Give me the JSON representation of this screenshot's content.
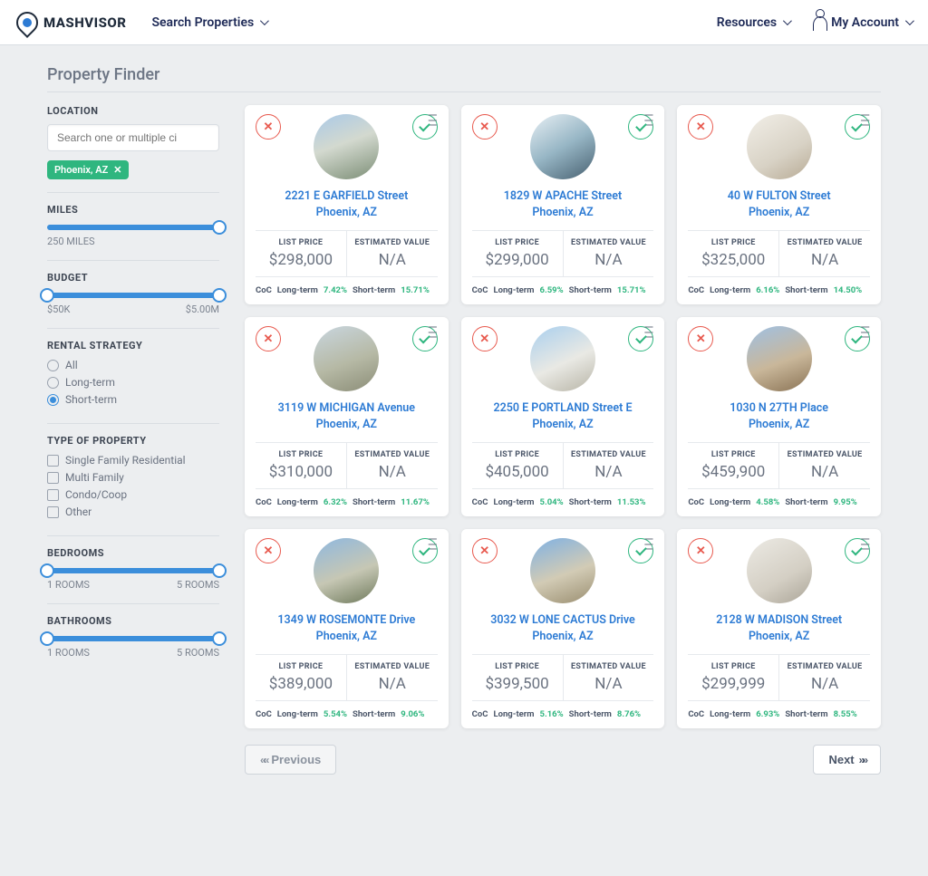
{
  "brand": "MASHVISOR",
  "nav": {
    "search_properties": "Search Properties",
    "resources": "Resources",
    "my_account": "My Account"
  },
  "page_title": "Property Finder",
  "filters": {
    "location": {
      "label": "LOCATION",
      "placeholder": "Search one or multiple ci",
      "chips": [
        "Phoenix, AZ"
      ]
    },
    "miles": {
      "label": "MILES",
      "display": "250 MILES",
      "fill_start": 0,
      "fill_end": 100,
      "thumbs": [
        100
      ]
    },
    "budget": {
      "label": "BUDGET",
      "min": "$50K",
      "max": "$5.00M",
      "fill_start": 0,
      "fill_end": 100,
      "thumbs": [
        0,
        100
      ]
    },
    "rental_strategy": {
      "label": "RENTAL STRATEGY",
      "options": [
        "All",
        "Long-term",
        "Short-term"
      ],
      "selected": "Short-term"
    },
    "property_type": {
      "label": "TYPE OF PROPERTY",
      "options": [
        "Single Family Residential",
        "Multi Family",
        "Condo/Coop",
        "Other"
      ]
    },
    "bedrooms": {
      "label": "BEDROOMS",
      "min": "1 ROOMS",
      "max": "5 ROOMS",
      "fill_start": 0,
      "fill_end": 100,
      "thumbs": [
        0,
        100
      ]
    },
    "bathrooms": {
      "label": "BATHROOMS",
      "min": "1 ROOMS",
      "max": "5 ROOMS",
      "fill_start": 0,
      "fill_end": 100,
      "thumbs": [
        0,
        100
      ]
    }
  },
  "card_labels": {
    "list_price": "LIST PRICE",
    "estimated_value": "ESTIMATED VALUE",
    "coc": "CoC",
    "long_term": "Long-term",
    "short_term": "Short-term"
  },
  "properties": [
    {
      "line1": "2221 E GARFIELD Street",
      "line2": "Phoenix, AZ",
      "list_price": "$298,000",
      "est_value": "N/A",
      "lt": "7.42%",
      "st": "15.71%",
      "bg": "linear-gradient(160deg,#a9c9e8 0%,#d3d9cf 45%,#7c8e76 100%)"
    },
    {
      "line1": "1829 W APACHE Street",
      "line2": "Phoenix, AZ",
      "list_price": "$299,000",
      "est_value": "N/A",
      "lt": "6.59%",
      "st": "15.71%",
      "bg": "linear-gradient(150deg,#e8f0f5 0%,#97b6c5 50%,#476070 100%)"
    },
    {
      "line1": "40 W FULTON Street",
      "line2": "Phoenix, AZ",
      "list_price": "$325,000",
      "est_value": "N/A",
      "lt": "6.16%",
      "st": "14.50%",
      "bg": "linear-gradient(150deg,#f2efe8 0%,#d8d2c5 60%,#b7aa94 100%)"
    },
    {
      "line1": "3119 W MICHIGAN Avenue",
      "line2": "Phoenix, AZ",
      "list_price": "$310,000",
      "est_value": "N/A",
      "lt": "6.32%",
      "st": "11.67%",
      "bg": "linear-gradient(160deg,#c9d6df 0%,#b6b9a5 55%,#8b8d77 100%)"
    },
    {
      "line1": "2250 E PORTLAND Street E",
      "line2": "Phoenix, AZ",
      "list_price": "$405,000",
      "est_value": "N/A",
      "lt": "5.04%",
      "st": "11.53%",
      "bg": "linear-gradient(155deg,#a9cfee 0%,#e9e9e4 55%,#b7b4a6 100%)"
    },
    {
      "line1": "1030 N 27TH Place",
      "line2": "Phoenix, AZ",
      "list_price": "$459,900",
      "est_value": "N/A",
      "lt": "4.58%",
      "st": "9.95%",
      "bg": "linear-gradient(160deg,#9fc0e3 0%,#c9b79a 55%,#8a7355 100%)"
    },
    {
      "line1": "1349 W ROSEMONTE Drive",
      "line2": "Phoenix, AZ",
      "list_price": "$389,000",
      "est_value": "N/A",
      "lt": "5.54%",
      "st": "9.06%",
      "bg": "linear-gradient(160deg,#8fb8df 0%,#c6c7b4 55%,#6f7a5c 100%)"
    },
    {
      "line1": "3032 W LONE CACTUS Drive",
      "line2": "Phoenix, AZ",
      "list_price": "$399,500",
      "est_value": "N/A",
      "lt": "5.16%",
      "st": "8.76%",
      "bg": "linear-gradient(160deg,#7fb1e3 0%,#d2cbb5 55%,#9a8e70 100%)"
    },
    {
      "line1": "2128 W MADISON Street",
      "line2": "Phoenix, AZ",
      "list_price": "$299,999",
      "est_value": "N/A",
      "lt": "6.93%",
      "st": "8.55%",
      "bg": "linear-gradient(150deg,#eceae4 0%,#d4cfc4 60%,#aaa497 100%)"
    }
  ],
  "pager": {
    "previous": "Previous",
    "next": "Next"
  },
  "colors": {
    "accent_blue": "#3b8edb",
    "accent_green": "#2fb67f",
    "accent_red": "#e85a4f",
    "link_blue": "#2d7bd4",
    "bg": "#eceef0"
  }
}
